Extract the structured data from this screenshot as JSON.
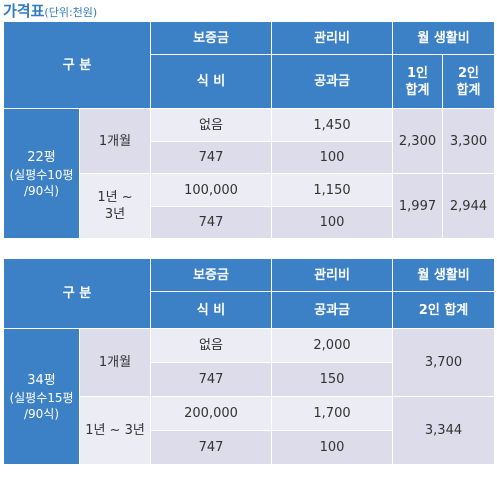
{
  "page_title": "가격표",
  "page_unit": "(단위:천원)",
  "table1": {
    "header": {
      "category": "구 분",
      "deposit": "보증금",
      "management": "관리비",
      "monthly_living": "월 생활비",
      "meals": "식 비",
      "utilities": "공과금",
      "one_person": "1인 합계",
      "two_person": "2인 합계"
    },
    "section_label_line1": "22평",
    "section_label_line2": "(실평수10평",
    "section_label_line3": "/90식)",
    "periods": [
      {
        "label": "1개월",
        "deposit": "없음",
        "management": "1,450",
        "meals": "747",
        "utilities": "100",
        "one_person_total": "2,300",
        "two_person_total": "3,300"
      },
      {
        "label_line1": "1년 ~",
        "label_line2": "3년",
        "deposit": "100,000",
        "management": "1,150",
        "meals": "747",
        "utilities": "100",
        "one_person_total": "1,997",
        "two_person_total": "2,944"
      }
    ]
  },
  "table2": {
    "header": {
      "category": "구 분",
      "deposit": "보증금",
      "management": "관리비",
      "monthly_living": "월 생활비",
      "meals": "식 비",
      "utilities": "공과금",
      "two_person": "2인 합계"
    },
    "section_label_line1": "34평",
    "section_label_line2": "(실평수15평",
    "section_label_line3": "/90식)",
    "periods": [
      {
        "label": "1개월",
        "deposit": "없음",
        "management": "2,000",
        "meals": "747",
        "utilities": "150",
        "two_person_total": "3,700"
      },
      {
        "label": "1년 ~ 3년",
        "deposit": "200,000",
        "management": "1,700",
        "meals": "747",
        "utilities": "100",
        "two_person_total": "3,344"
      }
    ]
  }
}
